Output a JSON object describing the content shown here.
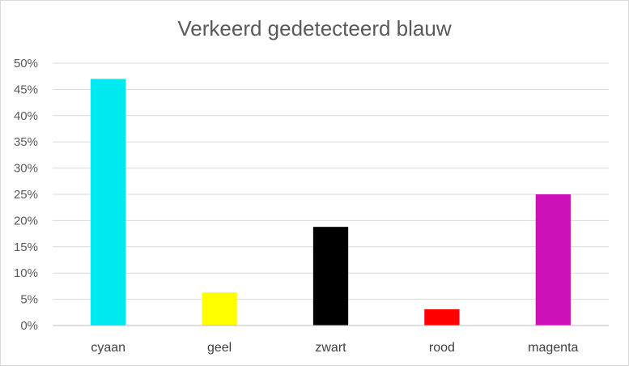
{
  "chart_data": {
    "type": "bar",
    "title": "Verkeerd gedetecteerd blauw",
    "xlabel": "",
    "ylabel": "",
    "categories": [
      "cyaan",
      "geel",
      "zwart",
      "rood",
      "magenta"
    ],
    "values": [
      47,
      6.3,
      18.8,
      3.1,
      25
    ],
    "value_format": "percent",
    "ylim": [
      0,
      50
    ],
    "yticks": [
      "0%",
      "5%",
      "10%",
      "15%",
      "20%",
      "25%",
      "30%",
      "35%",
      "40%",
      "45%",
      "50%"
    ],
    "grid": true,
    "legend": "none",
    "bar_colors": [
      "#00e8f0",
      "#ffff00",
      "#000000",
      "#ff0000",
      "#cc11b8"
    ],
    "grid_color": "#d9d9d9",
    "axis_color": "#bfbfbf"
  }
}
